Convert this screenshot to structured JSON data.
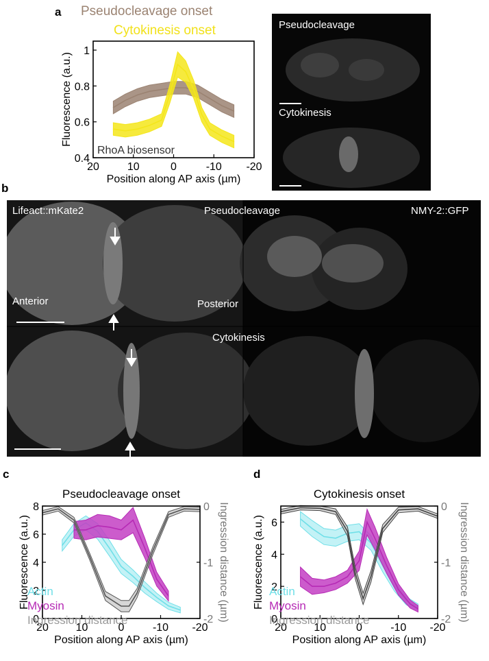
{
  "panels": {
    "a": {
      "label": "a",
      "legend": [
        {
          "text": "Pseudocleavage onset",
          "color": "#9b8372"
        },
        {
          "text": "Cytokinesis onset",
          "color": "#f4e61b"
        }
      ],
      "inset_label": "RhoA biosensor",
      "micro_top_label": "Pseudocleavage",
      "micro_bottom_label": "Cytokinesis"
    },
    "b": {
      "label": "b",
      "top_left_label": "Lifeact::mKate2",
      "top_center_label": "Pseudocleavage",
      "top_right_label": "NMY-2::GFP",
      "anterior_label": "Anterior",
      "posterior_label": "Posterior",
      "bottom_center_label": "Cytokinesis"
    },
    "c": {
      "label": "c"
    },
    "d": {
      "label": "d"
    }
  },
  "chart_data": [
    {
      "id": "a",
      "type": "line",
      "title": "",
      "xlabel": "Position along AP axis (µm)",
      "ylabel": "Fluorescence (a.u.)",
      "xlim": [
        20,
        -20
      ],
      "xticks": [
        20,
        10,
        0,
        -10,
        -20
      ],
      "ylim": [
        0.4,
        1.05
      ],
      "yticks": [
        0.4,
        0.6,
        0.8,
        1
      ],
      "ytick_labels": [
        "0.4",
        "0.6",
        "0.8",
        "1"
      ],
      "annotation": "RhoA biosensor",
      "series": [
        {
          "name": "Pseudocleavage onset",
          "color": "#9b8372",
          "fill": "#9b8372",
          "x": [
            15,
            12,
            9,
            6,
            3,
            0,
            -3,
            -6,
            -9,
            -12,
            -15
          ],
          "y": [
            0.68,
            0.72,
            0.75,
            0.77,
            0.78,
            0.79,
            0.79,
            0.77,
            0.73,
            0.69,
            0.66
          ],
          "err": [
            0.035,
            0.035,
            0.035,
            0.035,
            0.035,
            0.035,
            0.035,
            0.035,
            0.035,
            0.035,
            0.035
          ]
        },
        {
          "name": "Cytokinesis onset",
          "color": "#f4e61b",
          "fill": "#f4e61b",
          "x": [
            15,
            12,
            9,
            6,
            3,
            1,
            -1,
            -3,
            -5,
            -7,
            -9,
            -12,
            -15
          ],
          "y": [
            0.56,
            0.55,
            0.56,
            0.58,
            0.61,
            0.75,
            0.92,
            0.88,
            0.78,
            0.64,
            0.56,
            0.52,
            0.49
          ],
          "err": [
            0.035,
            0.035,
            0.035,
            0.035,
            0.035,
            0.05,
            0.07,
            0.06,
            0.05,
            0.04,
            0.035,
            0.035,
            0.035
          ]
        }
      ]
    },
    {
      "id": "c",
      "type": "line",
      "title": "Pseudocleavage onset",
      "xlabel": "Position along AP axis (µm)",
      "ylabel": "Fluorescence (a.u.)",
      "y2label": "Ingression distance (µm)",
      "xlim": [
        20,
        -20
      ],
      "xticks": [
        20,
        10,
        0,
        -10,
        -20
      ],
      "ylim": [
        0,
        8
      ],
      "yticks": [
        0,
        2,
        4,
        6,
        8
      ],
      "y2lim": [
        -2,
        0
      ],
      "y2ticks": [
        0,
        -1,
        -2
      ],
      "series": [
        {
          "name": "Actin",
          "color": "#6fdfe8",
          "fill": "#b9f0f4",
          "axis": "left",
          "x": [
            15,
            12,
            9,
            6,
            3,
            0,
            -3,
            -6,
            -9,
            -12,
            -15
          ],
          "y": [
            5.2,
            6.3,
            6.8,
            6.2,
            5.0,
            3.7,
            3.0,
            2.2,
            1.5,
            0.9,
            0.6
          ],
          "err": [
            0.4,
            0.45,
            0.5,
            0.55,
            0.55,
            0.5,
            0.45,
            0.4,
            0.3,
            0.25,
            0.2
          ]
        },
        {
          "name": "Myosin",
          "color": "#b62ab5",
          "fill": "#c33fc3",
          "axis": "left",
          "x": [
            12,
            9,
            6,
            3,
            0,
            -3,
            -6,
            -9,
            -12
          ],
          "y": [
            6.3,
            6.3,
            6.6,
            6.5,
            6.3,
            7.0,
            5.0,
            2.8,
            1.6
          ],
          "err": [
            0.6,
            0.7,
            0.8,
            0.8,
            0.7,
            0.9,
            0.7,
            0.5,
            0.35
          ]
        },
        {
          "name": "Ingression distance",
          "color": "#555555",
          "fill": "#c8c8c8",
          "axis": "right",
          "x": [
            20,
            16,
            12,
            8,
            4,
            0,
            -2,
            -4,
            -8,
            -12,
            -16,
            -20
          ],
          "y": [
            -0.12,
            -0.05,
            -0.25,
            -0.9,
            -1.6,
            -1.78,
            -1.78,
            -1.55,
            -0.8,
            -0.15,
            -0.05,
            -0.06
          ],
          "err": [
            0.04,
            0.04,
            0.05,
            0.06,
            0.08,
            0.1,
            0.1,
            0.08,
            0.07,
            0.05,
            0.04,
            0.04
          ]
        }
      ]
    },
    {
      "id": "d",
      "type": "line",
      "title": "Cytokinesis onset",
      "xlabel": "Position along AP axis (µm)",
      "ylabel": "Fluorescence (a.u.)",
      "y2label": "Ingression distance (µm)",
      "xlim": [
        20,
        -20
      ],
      "xticks": [
        20,
        10,
        0,
        -10,
        -20
      ],
      "ylim": [
        0,
        7
      ],
      "yticks": [
        0,
        2,
        4,
        6
      ],
      "y2lim": [
        -2,
        0
      ],
      "y2ticks": [
        0,
        -1,
        -2
      ],
      "series": [
        {
          "name": "Actin",
          "color": "#6fdfe8",
          "fill": "#b9f0f4",
          "axis": "left",
          "x": [
            15,
            12,
            9,
            6,
            3,
            0,
            -3,
            -6,
            -9,
            -12,
            -15
          ],
          "y": [
            6.2,
            5.6,
            5.1,
            5.0,
            5.3,
            5.4,
            4.7,
            3.3,
            2.0,
            1.1,
            0.7
          ],
          "err": [
            0.45,
            0.5,
            0.5,
            0.5,
            0.5,
            0.5,
            0.45,
            0.4,
            0.3,
            0.25,
            0.2
          ]
        },
        {
          "name": "Myosin",
          "color": "#b62ab5",
          "fill": "#c33fc3",
          "axis": "left",
          "x": [
            15,
            12,
            9,
            6,
            3,
            0,
            -2,
            -4,
            -7,
            -10,
            -13,
            -15
          ],
          "y": [
            2.6,
            2.0,
            2.0,
            2.2,
            2.6,
            3.6,
            6.0,
            5.0,
            3.3,
            1.8,
            0.9,
            0.6
          ],
          "err": [
            0.6,
            0.5,
            0.4,
            0.4,
            0.4,
            0.6,
            0.8,
            0.7,
            0.5,
            0.35,
            0.25,
            0.2
          ]
        },
        {
          "name": "Ingression distance",
          "color": "#444444",
          "fill": "#c8c8c8",
          "axis": "right",
          "x": [
            20,
            15,
            10,
            6,
            3,
            1,
            -1,
            -3,
            -6,
            -10,
            -15,
            -20
          ],
          "y": [
            -0.1,
            -0.03,
            -0.04,
            -0.1,
            -0.45,
            -1.2,
            -1.65,
            -1.25,
            -0.4,
            -0.07,
            -0.05,
            -0.18
          ],
          "err": [
            0.04,
            0.04,
            0.04,
            0.05,
            0.08,
            0.1,
            0.1,
            0.1,
            0.07,
            0.05,
            0.04,
            0.04
          ]
        }
      ]
    }
  ]
}
